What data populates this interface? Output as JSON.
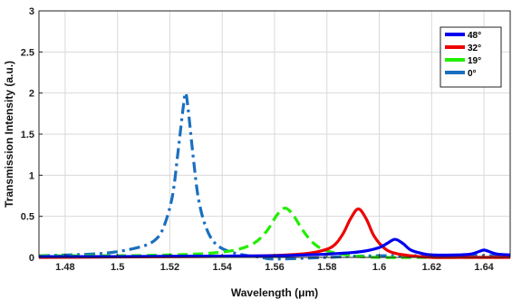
{
  "chart_data": {
    "type": "line",
    "title": "",
    "xlabel": "Wavelength (μm)",
    "ylabel": "Transmission Intensity (a.u.)",
    "xlim": [
      1.47,
      1.65
    ],
    "ylim": [
      0,
      3
    ],
    "xticks": [
      1.48,
      1.5,
      1.52,
      1.54,
      1.56,
      1.58,
      1.6,
      1.62,
      1.64
    ],
    "xtick_labels": [
      "1.48",
      "1.5",
      "1.52",
      "1.54",
      "1.56",
      "1.58",
      "1.6",
      "1.62",
      "1.64"
    ],
    "yticks": [
      0,
      0.5,
      1,
      1.5,
      2,
      2.5,
      3
    ],
    "ytick_labels": [
      "0",
      "0.5",
      "1",
      "1.5",
      "2",
      "2.5",
      "3"
    ],
    "grid": true,
    "legend_position": "top-right",
    "series": [
      {
        "name": "48°",
        "color": "#0000ee",
        "style": "solid",
        "x": [
          1.47,
          1.5,
          1.53,
          1.56,
          1.58,
          1.59,
          1.595,
          1.6,
          1.603,
          1.606,
          1.609,
          1.612,
          1.616,
          1.62,
          1.63,
          1.635,
          1.638,
          1.64,
          1.642,
          1.645,
          1.65
        ],
        "y": [
          0.01,
          0.01,
          0.015,
          0.02,
          0.04,
          0.06,
          0.08,
          0.12,
          0.17,
          0.22,
          0.17,
          0.09,
          0.05,
          0.03,
          0.03,
          0.04,
          0.07,
          0.09,
          0.07,
          0.04,
          0.03
        ]
      },
      {
        "name": "32°",
        "color": "#ee0000",
        "style": "solid",
        "x": [
          1.47,
          1.5,
          1.53,
          1.55,
          1.565,
          1.575,
          1.582,
          1.586,
          1.589,
          1.592,
          1.595,
          1.598,
          1.602,
          1.606,
          1.612,
          1.62,
          1.635,
          1.65
        ],
        "y": [
          0.0,
          0.005,
          0.01,
          0.015,
          0.03,
          0.06,
          0.13,
          0.28,
          0.47,
          0.59,
          0.47,
          0.26,
          0.11,
          0.05,
          0.02,
          0.0,
          0.0,
          0.0
        ]
      },
      {
        "name": "19°",
        "color": "#22ee00",
        "style": "dashed",
        "x": [
          1.47,
          1.5,
          1.52,
          1.535,
          1.545,
          1.552,
          1.557,
          1.561,
          1.564,
          1.567,
          1.571,
          1.575,
          1.58,
          1.59,
          1.6,
          1.62,
          1.65
        ],
        "y": [
          0.02,
          0.02,
          0.03,
          0.05,
          0.09,
          0.17,
          0.32,
          0.52,
          0.6,
          0.52,
          0.32,
          0.17,
          0.08,
          0.02,
          0.0,
          0.0,
          0.0
        ]
      },
      {
        "name": "0°",
        "color": "#1a6fbf",
        "style": "dashdot",
        "x": [
          1.47,
          1.49,
          1.5,
          1.51,
          1.515,
          1.518,
          1.521,
          1.523,
          1.525,
          1.526,
          1.527,
          1.529,
          1.531,
          1.534,
          1.538,
          1.545,
          1.555,
          1.56,
          1.58,
          1.6,
          1.65
        ],
        "y": [
          0.02,
          0.04,
          0.07,
          0.14,
          0.23,
          0.4,
          0.75,
          1.25,
          1.8,
          2.0,
          1.8,
          1.2,
          0.7,
          0.35,
          0.15,
          0.05,
          0.0,
          -0.02,
          0.0,
          0.02,
          0.02
        ]
      }
    ]
  }
}
